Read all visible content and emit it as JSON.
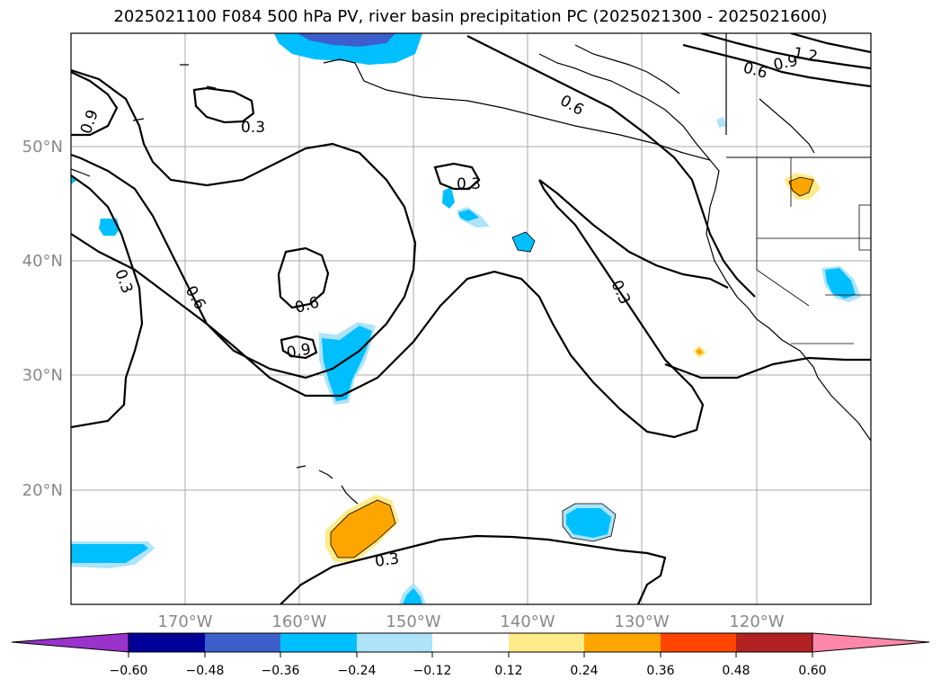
{
  "title": "2025021100 F084 500 hPa PV, river basin precipitation PC (2025021300 - 2025021600)",
  "map": {
    "lon_labels": [
      "170°W",
      "160°W",
      "150°W",
      "140°W",
      "130°W",
      "120°W"
    ],
    "lat_labels": [
      "50°N",
      "40°N",
      "30°N",
      "20°N"
    ],
    "contour_labels": [
      "0.3",
      "0.3",
      "0.3",
      "0.3",
      "0.3",
      "0.6",
      "0.6",
      "0.6",
      "0.6",
      "0.9",
      "0.9",
      "0.9",
      "1.2"
    ]
  },
  "colorbar": {
    "ticks": [
      "−0.60",
      "−0.48",
      "−0.36",
      "−0.24",
      "−0.12",
      "0.12",
      "0.24",
      "0.36",
      "0.48",
      "0.60"
    ],
    "colors": [
      "#9933cc",
      "#000099",
      "#3d5fcc",
      "#00bfff",
      "#aee3fa",
      "#ffffff",
      "#ffeb8a",
      "#ffa500",
      "#ff4500",
      "#b22222",
      "#ff88aa"
    ]
  }
}
